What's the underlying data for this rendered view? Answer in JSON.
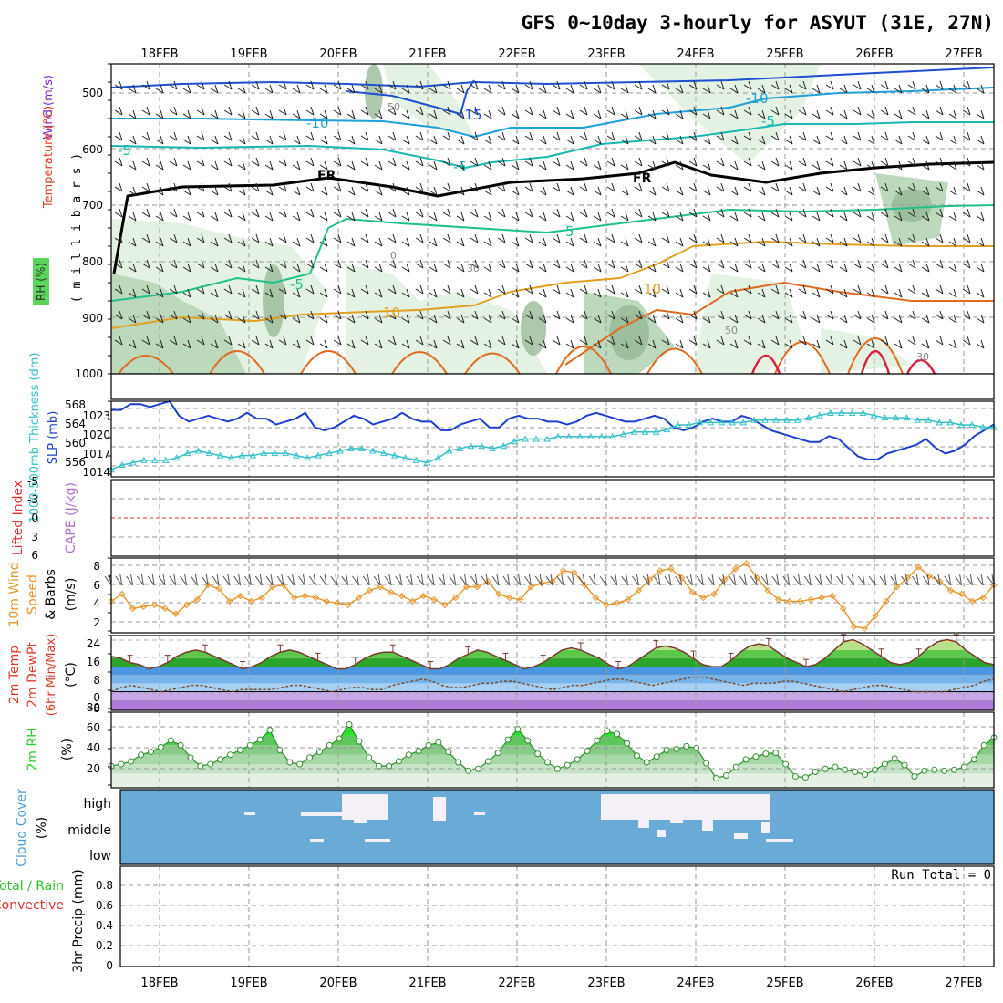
{
  "title": "GFS 0~10day 3-hourly for ASYUT (31E, 27N)",
  "dates": [
    "18FEB",
    "19FEB",
    "20FEB",
    "21FEB",
    "22FEB",
    "23FEB",
    "24FEB",
    "25FEB",
    "26FEB",
    "27FEB"
  ],
  "colors": {
    "rh_light": "#e1f1e1",
    "rh_mid": "#b9d7b9",
    "rh_dark": "#93b693",
    "wind_contour": "#1f4fd1",
    "minus10": "#1fa0d8",
    "minus5": "#17b8b0",
    "plus5": "#21c08a",
    "plus10": "#e0a020",
    "plus15": "#e06a20",
    "plus20": "#d82040",
    "freezing": "#000000",
    "slp": "#1f3fcf",
    "thickness": "#35c0c8",
    "lifted_index": "#e03030",
    "wind10": "#e6962a",
    "temp_band": "#2ba52b",
    "dewpoint": "#7a4a2a",
    "cloud": "#6aaad6",
    "cloud_gap": "#f4f0f6",
    "rh2m": "#2ecf2e",
    "precip_total": "#30c030",
    "precip_conv": "#e03030"
  },
  "panels": {
    "upper": {
      "ylabel_wind": "Wind (m/s)",
      "ylabel_temp": "Temperature (°C)",
      "ylabel_rh": "RH (%)",
      "ylabel_pressure": "( m i l l i b a r s )",
      "pressure_ticks": [
        "500",
        "600",
        "700",
        "800",
        "900",
        "1000"
      ],
      "labels": {
        "freezing": "FR",
        "m15": "-15",
        "m10": "-10",
        "m5": "-5",
        "p5": "5",
        "p10": "10",
        "rh50": "50",
        "rh30": "30",
        "rh0": "0"
      }
    },
    "slp": {
      "ylabel_thickness": "1000-500mb Thickness (dm)",
      "ylabel_slp": "SLP (mb)",
      "thickness_ticks": [
        "568",
        "564",
        "560",
        "556"
      ],
      "slp_ticks": [
        "1023",
        "1020",
        "1017",
        "1014"
      ]
    },
    "cape": {
      "ylabel_li": "Lifted Index",
      "ylabel_cape": "CAPE (J/kg)",
      "li_ticks": [
        "-5",
        "-3",
        "0",
        "3",
        "6"
      ]
    },
    "wind10": {
      "ylabel1": "10m Wind",
      "ylabel2": "Speed",
      "ylabel3": "& Barbs",
      "ylabel4": "(m/s)",
      "ticks": [
        "8",
        "6",
        "4",
        "2"
      ]
    },
    "temp2m": {
      "ylabel1": "2m Temp",
      "ylabel2": "2m DewPt",
      "ylabel3": "(6hr Min/Max)",
      "ylabel4": "(°C)",
      "ticks": [
        "24",
        "16",
        "8",
        "0",
        "-8"
      ]
    },
    "rh2m": {
      "ylabel1": "2m RH",
      "ylabel2": "(%)",
      "ticks": [
        "80",
        "60",
        "40",
        "20"
      ]
    },
    "cloud": {
      "ylabel1": "Cloud Cover",
      "ylabel2": "(%)",
      "levels": [
        "high",
        "middle",
        "low"
      ]
    },
    "precip": {
      "ylabel1": "Total / Rain",
      "ylabel2": "Convective",
      "ylabel3": "3hr Precip (mm)",
      "ticks": [
        "0.8",
        "0.6",
        "0.4",
        "0.2",
        "0"
      ],
      "run_total": "Run Total = 0"
    }
  },
  "chart_data": [
    {
      "type": "line",
      "name": "SLP",
      "ylim": [
        1012,
        1025
      ],
      "values": [
        1023.5,
        1023.5,
        1024.5,
        1024.5,
        1024.0,
        1024.5,
        1025.0,
        1022.5,
        1021.5,
        1022.0,
        1022.5,
        1022.0,
        1021.5,
        1022.0,
        1023.0,
        1022.0,
        1022.0,
        1021.0,
        1021.5,
        1022.0,
        1023.0,
        1020.5,
        1020.0,
        1020.5,
        1021.5,
        1022.5,
        1022.0,
        1021.0,
        1021.5,
        1022.0,
        1023.0,
        1022.0,
        1021.5,
        1021.5,
        1020.0,
        1020.0,
        1021.0,
        1021.5,
        1022.0,
        1020.5,
        1020.5,
        1022.0,
        1022.5,
        1022.0,
        1022.0,
        1021.5,
        1021.5,
        1021.0,
        1021.5,
        1022.5,
        1023.0,
        1022.5,
        1022.0,
        1021.5,
        1021.5,
        1022.0,
        1022.5,
        1022.0,
        1020.5,
        1020.0,
        1020.5,
        1021.5,
        1022.0,
        1021.5,
        1021.5,
        1022.5,
        1022.0,
        1021.0,
        1020.0,
        1019.5,
        1019.0,
        1018.5,
        1018.0,
        1018.0,
        1019.0,
        1018.5,
        1017.0,
        1015.5,
        1015.0,
        1015.0,
        1016.0,
        1016.5,
        1017.0,
        1017.5,
        1018.5,
        1017.0,
        1016.0,
        1016.5,
        1017.5,
        1019.0,
        1020.0,
        1021.0
      ]
    },
    {
      "type": "line",
      "name": "1000-500mb Thickness",
      "ylim": [
        553,
        569
      ],
      "values": [
        554.5,
        555.5,
        556.0,
        556.5,
        556.5,
        556.5,
        557.0,
        558.0,
        558.5,
        558.0,
        557.5,
        557.0,
        557.5,
        557.5,
        558.0,
        558.0,
        558.0,
        557.5,
        557.0,
        557.5,
        558.0,
        558.5,
        559.0,
        559.0,
        558.5,
        558.0,
        557.5,
        557.0,
        556.5,
        556.0,
        557.0,
        558.5,
        559.0,
        559.5,
        559.5,
        559.0,
        559.5,
        560.5,
        561.0,
        561.0,
        561.0,
        561.5,
        561.5,
        561.5,
        561.5,
        561.5,
        561.5,
        562.0,
        562.5,
        562.5,
        562.5,
        563.0,
        564.0,
        564.0,
        564.5,
        564.5,
        564.5,
        564.5,
        564.5,
        565.0,
        565.0,
        565.0,
        565.0,
        565.0,
        565.5,
        566.0,
        566.5,
        566.5,
        566.5,
        566.5,
        566.0,
        565.5,
        565.5,
        565.5,
        565.0,
        565.0,
        564.5,
        564.5,
        564.0,
        564.0,
        563.5,
        563.5
      ]
    },
    {
      "type": "line",
      "name": "10m Wind Speed",
      "ylim": [
        0.5,
        8.8
      ],
      "values": [
        4.0,
        4.8,
        3.2,
        3.4,
        3.6,
        3.2,
        2.6,
        3.6,
        4.2,
        5.8,
        5.4,
        4.0,
        4.6,
        4.0,
        4.4,
        5.6,
        5.8,
        4.4,
        4.6,
        4.4,
        4.0,
        3.8,
        3.6,
        4.4,
        5.2,
        5.6,
        5.0,
        4.6,
        4.0,
        4.6,
        4.2,
        3.6,
        4.4,
        5.6,
        5.6,
        6.2,
        4.8,
        4.4,
        4.2,
        5.6,
        6.0,
        6.2,
        7.4,
        7.2,
        5.8,
        4.4,
        3.6,
        3.8,
        4.2,
        5.2,
        6.4,
        7.4,
        7.6,
        6.6,
        5.0,
        4.4,
        4.8,
        6.4,
        7.6,
        8.2,
        6.6,
        5.2,
        4.2,
        4.0,
        4.0,
        4.2,
        4.4,
        4.6,
        3.2,
        1.2,
        1.0,
        2.4,
        4.0,
        5.6,
        6.6,
        7.8,
        6.8,
        6.2,
        5.2,
        4.8,
        4.0,
        4.4,
        5.8
      ]
    },
    {
      "type": "area",
      "name": "2m Temp",
      "ylim": [
        -9,
        27
      ],
      "values": [
        17,
        16,
        14,
        13,
        11,
        12,
        14,
        17,
        19,
        20,
        19,
        17,
        15,
        13,
        11,
        12,
        14,
        17,
        19,
        20,
        19,
        17,
        15,
        13,
        11,
        11,
        13,
        16,
        18,
        19,
        19,
        17,
        15,
        13,
        11,
        11,
        13,
        16,
        18,
        20,
        19,
        17,
        15,
        13,
        11,
        12,
        14,
        17,
        20,
        21,
        20,
        18,
        16,
        13,
        11,
        12,
        15,
        18,
        21,
        22,
        21,
        19,
        16,
        13,
        12,
        12,
        15,
        19,
        22,
        23,
        22,
        19,
        16,
        14,
        12,
        13,
        16,
        20,
        24,
        25,
        23,
        20,
        17,
        14,
        13,
        14,
        17,
        21,
        24,
        25,
        24,
        20,
        17,
        14,
        13
      ]
    },
    {
      "type": "line",
      "name": "2m DewPt",
      "ylim": [
        -9,
        27
      ],
      "values": [
        0,
        2,
        3,
        2,
        1,
        0,
        1,
        2,
        3,
        3,
        2,
        1,
        0,
        1,
        1,
        1,
        1,
        2,
        3,
        3,
        2,
        1,
        0,
        1,
        2,
        2,
        1,
        1,
        3,
        4,
        5,
        6,
        5,
        3,
        2,
        2,
        3,
        4,
        4,
        5,
        5,
        4,
        3,
        2,
        1,
        2,
        3,
        3,
        4,
        5,
        6,
        6,
        5,
        4,
        3,
        4,
        5,
        6,
        7,
        7,
        6,
        5,
        4,
        3,
        4,
        4,
        4,
        5,
        5,
        4,
        3,
        2,
        1,
        0,
        1,
        2,
        3,
        3,
        2,
        1,
        0,
        0,
        0,
        0,
        1,
        2,
        3,
        5,
        6
      ]
    },
    {
      "type": "area",
      "name": "2m RH",
      "ylim": [
        5,
        85
      ],
      "values": [
        28,
        30,
        33,
        40,
        43,
        48,
        55,
        50,
        37,
        28,
        30,
        35,
        40,
        45,
        50,
        56,
        66,
        45,
        32,
        30,
        37,
        43,
        50,
        57,
        72,
        54,
        37,
        28,
        28,
        33,
        40,
        44,
        50,
        53,
        43,
        32,
        23,
        25,
        33,
        42,
        56,
        67,
        55,
        41,
        32,
        25,
        29,
        35,
        44,
        55,
        65,
        62,
        52,
        39,
        32,
        38,
        45,
        46,
        49,
        47,
        31,
        15,
        18,
        27,
        35,
        38,
        41,
        42,
        30,
        17,
        16,
        22,
        25,
        27,
        24,
        22,
        19,
        24,
        30,
        36,
        29,
        17,
        23,
        24,
        23,
        24,
        27,
        35,
        50,
        58
      ]
    },
    {
      "type": "bar",
      "name": "3hr Precip",
      "ylim": [
        0,
        0.9
      ],
      "values": [],
      "run_total": "Run Total = 0"
    }
  ]
}
